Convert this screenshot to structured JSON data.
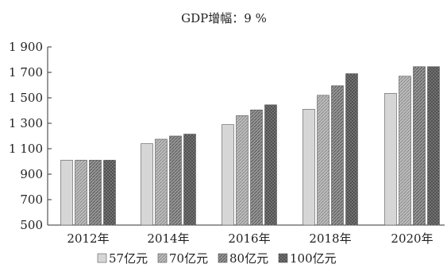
{
  "chart_data": {
    "type": "bar",
    "title": "GDP增幅：9 %",
    "xlabel": "",
    "ylabel": "",
    "categories": [
      "2012年",
      "2014年",
      "2016年",
      "2018年",
      "2020年"
    ],
    "ylim": [
      500,
      1900
    ],
    "yticks": [
      500,
      700,
      900,
      1100,
      1300,
      1500,
      1700,
      1900
    ],
    "ytick_labels": [
      "500",
      "700",
      "900",
      "1 100",
      "1 300",
      "1 500",
      "1 700",
      "1 900"
    ],
    "series": [
      {
        "name": "57亿元",
        "values": [
          1010,
          1140,
          1290,
          1410,
          1535
        ],
        "color": "#d6d6d6",
        "pattern": "solid"
      },
      {
        "name": "70亿元",
        "values": [
          1010,
          1175,
          1360,
          1520,
          1670
        ],
        "color": "#b4b4b4",
        "pattern": "hatch-light"
      },
      {
        "name": "80亿元",
        "values": [
          1010,
          1200,
          1405,
          1595,
          1745
        ],
        "color": "#8f8f8f",
        "pattern": "hatch-dark"
      },
      {
        "name": "100亿元",
        "values": [
          1010,
          1215,
          1445,
          1690,
          1745
        ],
        "color": "#6f6f6f",
        "pattern": "cross"
      }
    ],
    "grid": false,
    "legend_position": "bottom-center"
  }
}
